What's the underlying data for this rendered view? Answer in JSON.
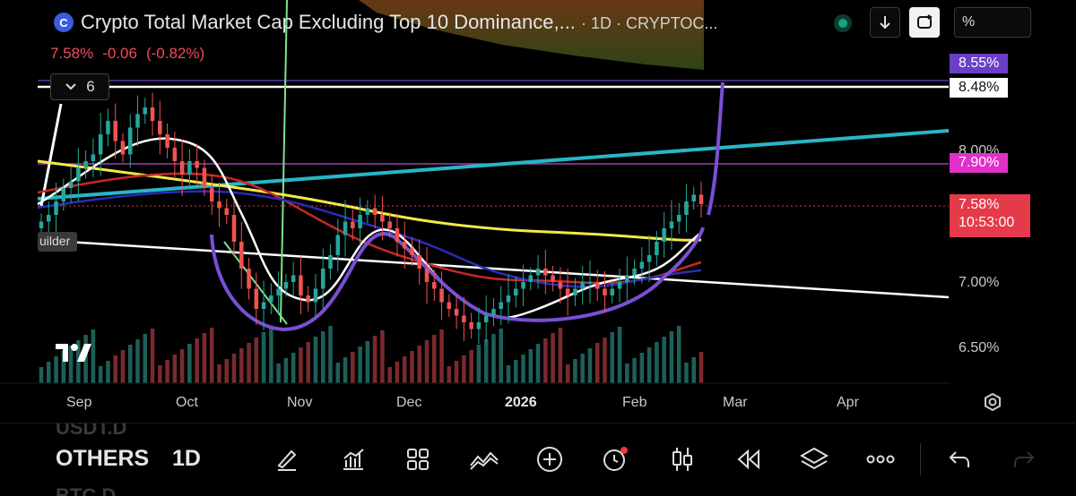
{
  "header": {
    "title": "Crypto Total Market Cap Excluding Top 10 Dominance,...",
    "meta": "· 1D · CRYPTOC...",
    "symbol_icon": "crypto-cap-icon",
    "last": "7.58%",
    "change": "-0.06",
    "change_pct": "(-0.82%)",
    "scale_value": "%",
    "indicators_count": "6"
  },
  "price_axis": {
    "labels": [
      "8.00%",
      "7.00%",
      "6.50%"
    ],
    "tags": {
      "purple": "8.55%",
      "white": "8.48%",
      "magenta": "7.90%",
      "current": "7.58%",
      "countdown": "10:53:00"
    }
  },
  "time_axis": [
    "Sep",
    "Oct",
    "Nov",
    "Dec",
    "2026",
    "Feb",
    "Mar",
    "Apr"
  ],
  "builder_label": "uilder",
  "toolbar": {
    "prev_symbol": "USDT.D",
    "symbol": "OTHERS",
    "interval": "1D",
    "next_symbol": "BTC.D",
    "icons": [
      "draw-icon",
      "indicators-icon",
      "templates-icon",
      "compare-icon",
      "add-icon",
      "alert-icon",
      "chart-type-icon",
      "replay-icon",
      "layers-icon",
      "more-icon",
      "undo-icon"
    ]
  },
  "colors": {
    "up": "#26a69a",
    "down": "#ef5350",
    "ma_white": "#ffffff",
    "ma_yellow": "#f5e948",
    "ma_red": "#c62828",
    "ma_navy": "#2b2bb8",
    "trend_teal": "#29b5c6",
    "drawing_purple": "#7a4fd4"
  },
  "chart_data": {
    "type": "candlestick",
    "title": "Crypto Total Market Cap Excluding Top 10 Dominance",
    "interval": "1D",
    "ylabel": "%",
    "ylim": [
      6.3,
      8.7
    ],
    "x_labels": [
      "Sep",
      "Oct",
      "Nov",
      "Dec",
      "2026",
      "Feb",
      "Mar",
      "Apr"
    ],
    "closes": [
      7.45,
      7.5,
      7.6,
      7.7,
      7.75,
      7.85,
      7.9,
      7.95,
      8.1,
      8.2,
      8.05,
      7.95,
      8.15,
      8.25,
      8.3,
      8.2,
      8.1,
      8.0,
      7.9,
      7.8,
      7.9,
      7.85,
      7.7,
      7.6,
      7.55,
      7.5,
      7.3,
      7.1,
      6.95,
      6.8,
      6.85,
      6.9,
      6.95,
      7.0,
      7.05,
      6.9,
      6.85,
      6.95,
      7.1,
      7.2,
      7.35,
      7.45,
      7.4,
      7.5,
      7.55,
      7.5,
      7.45,
      7.4,
      7.3,
      7.25,
      7.2,
      7.1,
      7.0,
      6.95,
      6.85,
      6.8,
      6.75,
      6.7,
      6.65,
      6.7,
      6.75,
      6.8,
      6.85,
      6.9,
      6.95,
      7.0,
      7.05,
      7.1,
      7.05,
      7.0,
      6.95,
      6.9,
      6.95,
      7.0,
      7.0,
      6.95,
      6.9,
      6.95,
      7.0,
      7.05,
      7.1,
      7.15,
      7.2,
      7.3,
      7.4,
      7.45,
      7.5,
      7.6,
      7.65,
      7.58
    ],
    "current_price": 7.58,
    "levels": [
      {
        "name": "purple-line",
        "value": 8.55
      },
      {
        "name": "white-line",
        "value": 8.48
      },
      {
        "name": "magenta-line",
        "value": 7.9
      },
      {
        "name": "last-price-line",
        "value": 7.58
      }
    ]
  }
}
